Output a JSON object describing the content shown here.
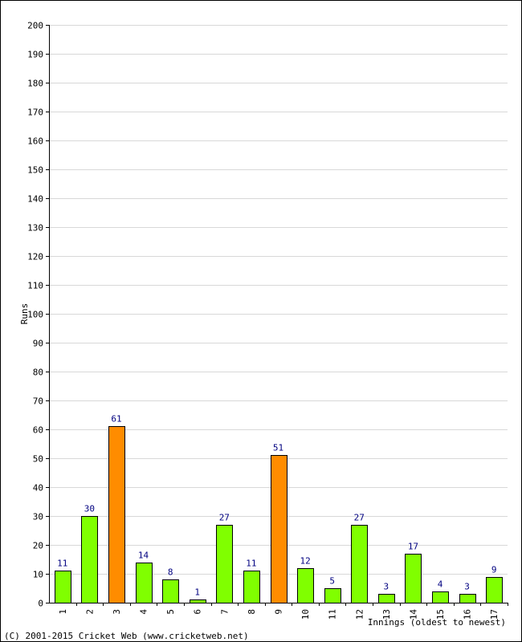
{
  "chart_data": {
    "type": "bar",
    "categories": [
      "1",
      "2",
      "3",
      "4",
      "5",
      "6",
      "7",
      "8",
      "9",
      "10",
      "11",
      "12",
      "13",
      "14",
      "15",
      "16",
      "17"
    ],
    "values": [
      11,
      30,
      61,
      14,
      8,
      1,
      27,
      11,
      51,
      12,
      5,
      27,
      3,
      17,
      4,
      3,
      9
    ],
    "highlight": [
      false,
      false,
      true,
      false,
      false,
      false,
      false,
      false,
      true,
      false,
      false,
      false,
      false,
      false,
      false,
      false,
      false
    ],
    "title": "",
    "xlabel": "Innings (oldest to newest)",
    "ylabel": "Runs",
    "ylim": [
      0,
      200
    ],
    "ytick_step": 10,
    "grid": true,
    "colors": {
      "bar": "#80ff00",
      "highlight": "#ff8c00",
      "outline": "#000000",
      "data_label": "#000080",
      "grid": "#d8d8d8"
    }
  },
  "footer": "(C) 2001-2015 Cricket Web (www.cricketweb.net)"
}
